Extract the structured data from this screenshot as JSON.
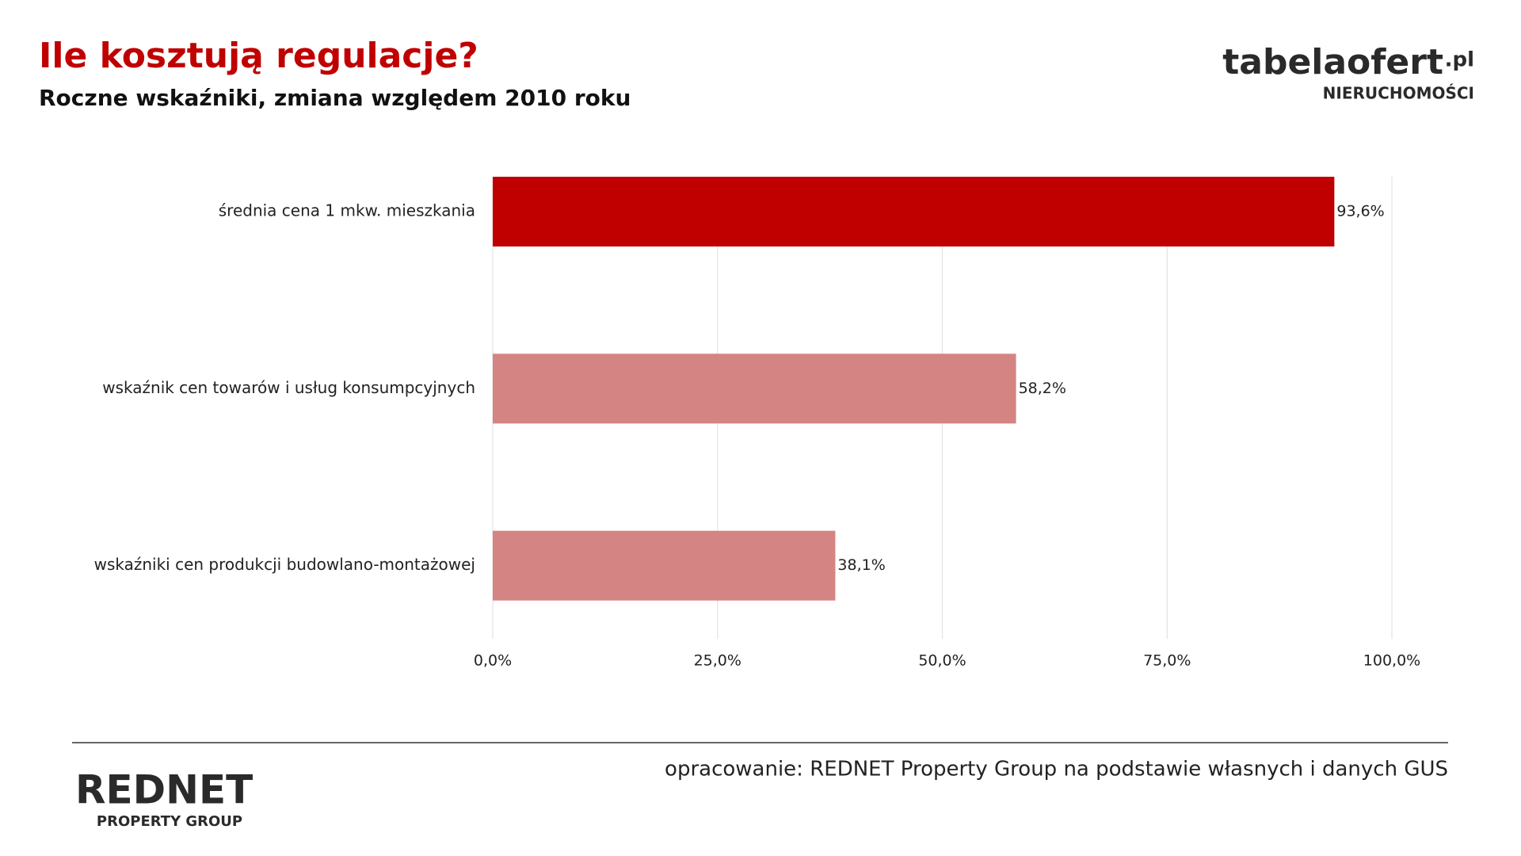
{
  "chart_data": {
    "type": "barh",
    "title": "Ile kosztują regulacje?",
    "subtitle": "Roczne wskaźniki, zmiana względem 2010 roku",
    "categories": [
      "średnia cena 1 mkw. mieszkania",
      "wskaźnik cen towarów i usług konsumpcyjnych",
      "wskaźniki cen produkcji budowlano-montażowej"
    ],
    "values": [
      93.6,
      58.2,
      38.1
    ],
    "value_labels": [
      "93,6%",
      "58,2%",
      "38,1%"
    ],
    "colors": [
      "#c00000",
      "#d48482",
      "#d48482"
    ],
    "xlim": [
      0,
      100
    ],
    "xticks": [
      {
        "value": 0,
        "label": "0,0%"
      },
      {
        "value": 25,
        "label": "25,0%"
      },
      {
        "value": 50,
        "label": "50,0%"
      },
      {
        "value": 75,
        "label": "75,0%"
      },
      {
        "value": 100,
        "label": "100,0%"
      }
    ],
    "grid": true
  },
  "logo_top": {
    "name": "tabelaofert",
    "domain": ".pl",
    "tagline": "NIERUCHOMOŚCI"
  },
  "logo_bottom": {
    "name": "REDNET",
    "tagline": "PROPERTY GROUP"
  },
  "source": "opracowanie: REDNET Property Group na podstawie własnych i danych GUS"
}
